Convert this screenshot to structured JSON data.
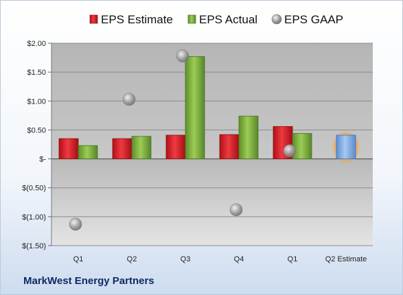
{
  "company": "MarkWest Energy Partners",
  "chart_data": {
    "type": "bar",
    "categories": [
      "Q1",
      "Q2",
      "Q3",
      "Q4",
      "Q1",
      "Q2 Estimate"
    ],
    "series": [
      {
        "name": "EPS Estimate",
        "type": "bar",
        "color": "#e0202a",
        "values": [
          0.35,
          0.35,
          0.41,
          0.42,
          0.56,
          null
        ]
      },
      {
        "name": "EPS Actual",
        "type": "bar",
        "color": "#7ab03c",
        "values": [
          0.23,
          0.39,
          1.77,
          0.74,
          0.44,
          null
        ]
      },
      {
        "name": "EPS GAAP",
        "type": "scatter",
        "color": "#a8a8a8",
        "values": [
          -1.13,
          1.03,
          1.78,
          -0.88,
          0.14,
          null
        ]
      },
      {
        "name": "",
        "type": "bar",
        "color": "#6f9fdc",
        "highlight": true,
        "values": [
          null,
          null,
          null,
          null,
          null,
          0.41
        ]
      }
    ],
    "ylim": [
      -1.5,
      2.0
    ],
    "ytick_values": [
      2.0,
      1.5,
      1.0,
      0.5,
      0.0,
      -0.5,
      -1.0,
      -1.5
    ],
    "ytick_labels": [
      "$2.00",
      "$1.50",
      "$1.00",
      "$0.50",
      "$-",
      "$(0.50)",
      "$(1.00)",
      "$(1.50)"
    ],
    "grid": true,
    "legend_position": "top"
  }
}
